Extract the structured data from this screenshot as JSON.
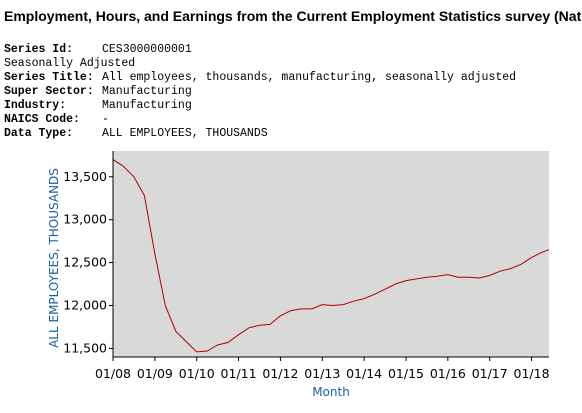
{
  "page": {
    "title": "Employment, Hours, and Earnings from the Current Employment Statistics survey (Nati"
  },
  "series_info": [
    {
      "key": "Series Id:",
      "value": "CES3000000001"
    },
    {
      "key": "Seasonally Adjusted",
      "value": ""
    },
    {
      "key": "Series Title:",
      "value": "All employees, thousands, manufacturing, seasonally adjusted"
    },
    {
      "key": "Super Sector:",
      "value": "Manufacturing"
    },
    {
      "key": "Industry:",
      "value": "Manufacturing"
    },
    {
      "key": "NAICS Code:",
      "value": "-"
    },
    {
      "key": "Data Type:",
      "value": "ALL EMPLOYEES, THOUSANDS"
    }
  ],
  "colors": {
    "plot_background": "#d9d9d9",
    "line": "#b00000",
    "axis_label": "#1f5fa5"
  },
  "chart_data": {
    "type": "line",
    "xlabel": "Month",
    "ylabel": "ALL EMPLOYEES, THOUSANDS",
    "x_ticks": [
      "01/08",
      "01/09",
      "01/10",
      "01/11",
      "01/12",
      "01/13",
      "01/14",
      "01/15",
      "01/16",
      "01/17",
      "01/18"
    ],
    "y_ticks": [
      11500,
      12000,
      12500,
      13000,
      13500
    ],
    "y_tick_labels": [
      "11,500",
      "12,000",
      "12,500",
      "13,000",
      "13,500"
    ],
    "xlim": [
      "2008-01",
      "2018-06"
    ],
    "ylim": [
      11400,
      13800
    ],
    "grid": false,
    "series": [
      {
        "x": [
          "2008-01",
          "2008-04",
          "2008-07",
          "2008-10",
          "2009-01",
          "2009-04",
          "2009-07",
          "2009-10",
          "2010-01",
          "2010-04",
          "2010-07",
          "2010-10",
          "2011-01",
          "2011-04",
          "2011-07",
          "2011-10",
          "2012-01",
          "2012-04",
          "2012-07",
          "2012-10",
          "2013-01",
          "2013-04",
          "2013-07",
          "2013-10",
          "2014-01",
          "2014-04",
          "2014-07",
          "2014-10",
          "2015-01",
          "2015-04",
          "2015-07",
          "2015-10",
          "2016-01",
          "2016-04",
          "2016-07",
          "2016-10",
          "2017-01",
          "2017-04",
          "2017-07",
          "2017-10",
          "2018-01",
          "2018-04",
          "2018-06"
        ],
        "values": [
          13700,
          13620,
          13500,
          13280,
          12600,
          12000,
          11700,
          11580,
          11460,
          11470,
          11540,
          11570,
          11660,
          11740,
          11770,
          11780,
          11880,
          11940,
          11960,
          11960,
          12010,
          12000,
          12010,
          12050,
          12080,
          12130,
          12190,
          12250,
          12290,
          12310,
          12330,
          12340,
          12360,
          12330,
          12330,
          12320,
          12350,
          12400,
          12430,
          12480,
          12560,
          12620,
          12650
        ]
      }
    ]
  }
}
